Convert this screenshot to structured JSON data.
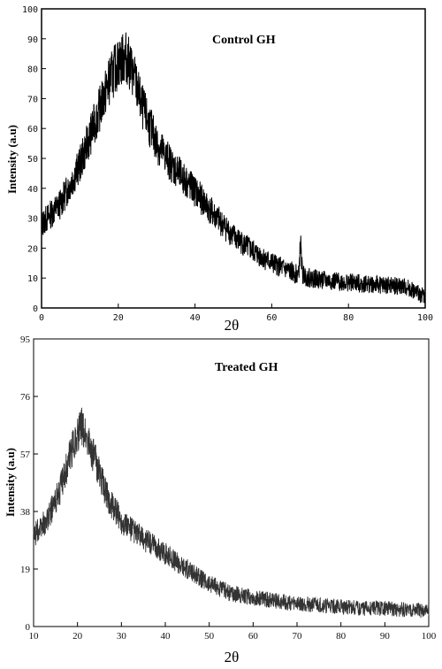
{
  "chart_data": [
    {
      "type": "line",
      "title": "Control GH",
      "xlabel": "2θ",
      "ylabel": "Intensity (a.u)",
      "xlim": [
        0,
        100
      ],
      "ylim": [
        0,
        100
      ],
      "x_ticks": [
        "0",
        "20",
        "40",
        "60",
        "80",
        "100"
      ],
      "y_ticks": [
        "0",
        "10",
        "20",
        "30",
        "40",
        "50",
        "60",
        "70",
        "80",
        "90",
        "100"
      ],
      "series": [
        {
          "color": "#000000",
          "x": [
            0,
            5,
            10,
            15,
            18,
            20,
            22,
            24,
            26,
            30,
            35,
            40,
            45,
            50,
            55,
            60,
            65,
            67,
            67.5,
            68,
            70,
            75,
            80,
            85,
            90,
            95,
            98,
            100
          ],
          "values": [
            28,
            35,
            48,
            66,
            77,
            82,
            84,
            78,
            68,
            55,
            46,
            39,
            31,
            24,
            19,
            15,
            12,
            11,
            22,
            11,
            10,
            9,
            8.5,
            8,
            7.5,
            7,
            5,
            4
          ]
        }
      ]
    },
    {
      "type": "line",
      "title": "Treated GH",
      "xlabel": "2θ",
      "ylabel": "Intensity (a.u)",
      "xlim": [
        10,
        100
      ],
      "ylim": [
        0,
        95
      ],
      "x_ticks": [
        "10",
        "20",
        "30",
        "40",
        "50",
        "60",
        "70",
        "80",
        "90",
        "100"
      ],
      "y_ticks": [
        "0",
        "19",
        "38",
        "57",
        "76",
        "95"
      ],
      "series": [
        {
          "color": "#333333",
          "x": [
            10,
            13,
            16,
            18,
            20,
            21,
            22,
            24,
            27,
            30,
            35,
            40,
            45,
            50,
            55,
            60,
            65,
            70,
            75,
            80,
            85,
            90,
            95,
            100
          ],
          "values": [
            30,
            35,
            45,
            55,
            64,
            66,
            63,
            55,
            42,
            35,
            29,
            24,
            19,
            14,
            11,
            9.5,
            8.5,
            7.5,
            7,
            6.5,
            6,
            6,
            5.5,
            5
          ]
        }
      ]
    }
  ]
}
